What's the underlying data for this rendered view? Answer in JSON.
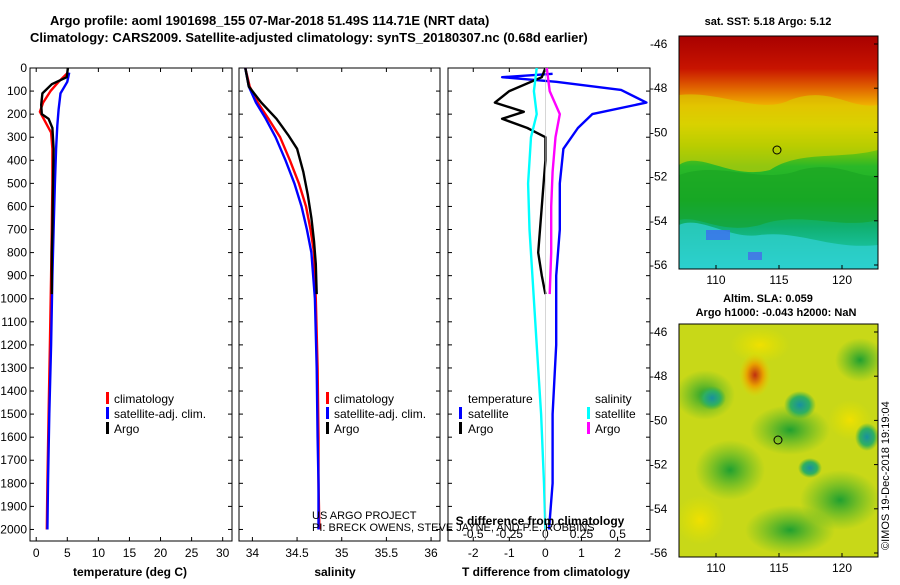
{
  "title_line1": "Argo profile: aoml 1901698_155 07-Mar-2018 51.49S 114.71E (NRT data)",
  "title_line2": "Climatology: CARS2009. Satellite-adjusted climatology: synTS_20180307.nc (0.68d earlier)",
  "colors": {
    "red": "#ff0000",
    "blue": "#0000ff",
    "black": "#000000",
    "cyan": "#00ffff",
    "magenta": "#ff00ff"
  },
  "depth_ticks": [
    "0",
    "100",
    "200",
    "300",
    "400",
    "500",
    "600",
    "700",
    "800",
    "900",
    "1000",
    "1100",
    "1200",
    "1300",
    "1400",
    "1500",
    "1600",
    "1700",
    "1800",
    "1900",
    "2000"
  ],
  "chart_data": [
    {
      "type": "line",
      "panel": "temperature",
      "xlabel": "temperature (deg C)",
      "ylabel": "depth",
      "xlim": [
        -1,
        31.5
      ],
      "ylim": [
        2050,
        0
      ],
      "xticks": [
        "0",
        "5",
        "10",
        "15",
        "20",
        "25",
        "30"
      ],
      "legend": [
        "climatology",
        "satellite-adj. clim.",
        "Argo"
      ],
      "series": [
        {
          "name": "climatology",
          "color": "red",
          "points": [
            [
              5.1,
              20
            ],
            [
              3.6,
              60
            ],
            [
              2.3,
              100
            ],
            [
              1.1,
              150
            ],
            [
              0.6,
              190
            ],
            [
              1.4,
              230
            ],
            [
              2.4,
              280
            ],
            [
              2.6,
              350
            ],
            [
              2.6,
              500
            ],
            [
              2.5,
              700
            ],
            [
              2.4,
              900
            ],
            [
              2.2,
              1200
            ],
            [
              2.0,
              1500
            ],
            [
              1.8,
              1800
            ],
            [
              1.7,
              2000
            ]
          ]
        },
        {
          "name": "satellite-adj. clim.",
          "color": "blue",
          "points": [
            [
              5.3,
              20
            ],
            [
              5.0,
              60
            ],
            [
              3.9,
              110
            ],
            [
              3.6,
              180
            ],
            [
              3.4,
              250
            ],
            [
              3.2,
              350
            ],
            [
              3.0,
              500
            ],
            [
              2.8,
              700
            ],
            [
              2.6,
              900
            ],
            [
              2.4,
              1200
            ],
            [
              2.1,
              1500
            ],
            [
              1.9,
              1800
            ],
            [
              1.8,
              2000
            ]
          ]
        },
        {
          "name": "Argo",
          "color": "black",
          "points": [
            [
              5.1,
              0
            ],
            [
              4.9,
              40
            ],
            [
              2.5,
              70
            ],
            [
              1.0,
              110
            ],
            [
              0.8,
              160
            ],
            [
              0.9,
              200
            ],
            [
              2.0,
              220
            ],
            [
              2.6,
              260
            ],
            [
              2.8,
              350
            ],
            [
              2.7,
              500
            ],
            [
              2.6,
              700
            ],
            [
              2.5,
              800
            ],
            [
              2.5,
              980
            ]
          ]
        }
      ]
    },
    {
      "type": "line",
      "panel": "salinity",
      "xlabel": "salinity",
      "ylabel": "depth",
      "xlim": [
        33.85,
        36.1
      ],
      "ylim": [
        2050,
        0
      ],
      "xticks": [
        "34",
        "34.5",
        "35",
        "35.5",
        "36"
      ],
      "legend": [
        "climatology",
        "satellite-adj. clim.",
        "Argo"
      ],
      "series": [
        {
          "name": "climatology",
          "color": "red",
          "points": [
            [
              33.92,
              0
            ],
            [
              33.97,
              80
            ],
            [
              34.06,
              150
            ],
            [
              34.18,
              220
            ],
            [
              34.31,
              300
            ],
            [
              34.42,
              400
            ],
            [
              34.52,
              500
            ],
            [
              34.6,
              600
            ],
            [
              34.65,
              700
            ],
            [
              34.69,
              800
            ],
            [
              34.71,
              1000
            ],
            [
              34.73,
              1300
            ],
            [
              34.74,
              1600
            ],
            [
              34.74,
              1800
            ],
            [
              34.75,
              2000
            ]
          ]
        },
        {
          "name": "satellite-adj. clim.",
          "color": "blue",
          "points": [
            [
              33.92,
              0
            ],
            [
              33.96,
              80
            ],
            [
              34.04,
              150
            ],
            [
              34.15,
              220
            ],
            [
              34.26,
              300
            ],
            [
              34.37,
              400
            ],
            [
              34.47,
              500
            ],
            [
              34.55,
              600
            ],
            [
              34.61,
              700
            ],
            [
              34.66,
              800
            ],
            [
              34.7,
              1000
            ],
            [
              34.72,
              1300
            ],
            [
              34.73,
              1600
            ],
            [
              34.74,
              1800
            ],
            [
              34.74,
              2000
            ]
          ]
        },
        {
          "name": "Argo",
          "color": "black",
          "points": [
            [
              33.92,
              0
            ],
            [
              33.96,
              80
            ],
            [
              34.1,
              150
            ],
            [
              34.27,
              220
            ],
            [
              34.4,
              290
            ],
            [
              34.5,
              350
            ],
            [
              34.57,
              450
            ],
            [
              34.62,
              550
            ],
            [
              34.66,
              650
            ],
            [
              34.69,
              750
            ],
            [
              34.71,
              850
            ],
            [
              34.72,
              980
            ]
          ]
        }
      ]
    },
    {
      "type": "line",
      "panel": "difference",
      "xlabel": "T difference from climatology",
      "top_label": "S difference from climatology",
      "xlim": [
        -2.7,
        2.9
      ],
      "ylim": [
        2050,
        0
      ],
      "xticks": [
        "-2",
        "-1",
        "0",
        "1",
        "2"
      ],
      "top_xticks": [
        "-0.5",
        "-0.25",
        "0",
        "0.25",
        "0.5"
      ],
      "legend_temperature": [
        "temperature",
        "satellite",
        "Argo"
      ],
      "legend_salinity": [
        "salinity",
        "satellite",
        "Argo"
      ],
      "series": [
        {
          "name": "temperature satellite",
          "color": "blue",
          "points": [
            [
              0.2,
              25
            ],
            [
              -1.2,
              40
            ],
            [
              0.3,
              60
            ],
            [
              2.1,
              95
            ],
            [
              2.8,
              150
            ],
            [
              1.3,
              200
            ],
            [
              0.9,
              260
            ],
            [
              0.5,
              350
            ],
            [
              0.4,
              500
            ],
            [
              0.4,
              700
            ],
            [
              0.3,
              900
            ],
            [
              0.3,
              1200
            ],
            [
              0.2,
              1500
            ],
            [
              0.2,
              1800
            ],
            [
              0.1,
              2000
            ]
          ]
        },
        {
          "name": "temperature Argo",
          "color": "black",
          "points": [
            [
              0,
              0
            ],
            [
              -0.1,
              40
            ],
            [
              -1.0,
              100
            ],
            [
              -1.4,
              150
            ],
            [
              -0.6,
              190
            ],
            [
              -1.2,
              220
            ],
            [
              -0.5,
              260
            ],
            [
              0.0,
              300
            ],
            [
              0.0,
              400
            ],
            [
              -0.1,
              600
            ],
            [
              -0.2,
              800
            ],
            [
              -0.1,
              900
            ],
            [
              0.0,
              980
            ]
          ]
        },
        {
          "name": "salinity satellite",
          "color": "cyan",
          "points": [
            [
              -0.06,
              0
            ],
            [
              -0.08,
              100
            ],
            [
              -0.06,
              200
            ],
            [
              -0.1,
              300
            ],
            [
              -0.12,
              500
            ],
            [
              -0.11,
              700
            ],
            [
              -0.09,
              900
            ],
            [
              -0.06,
              1200
            ],
            [
              -0.03,
              1500
            ],
            [
              -0.01,
              1800
            ],
            [
              0.0,
              2000
            ]
          ]
        },
        {
          "name": "salinity Argo",
          "color": "magenta",
          "points": [
            [
              0.01,
              0
            ],
            [
              0.03,
              100
            ],
            [
              0.1,
              200
            ],
            [
              0.07,
              300
            ],
            [
              0.05,
              450
            ],
            [
              0.04,
              600
            ],
            [
              0.04,
              800
            ],
            [
              0.03,
              980
            ]
          ]
        }
      ]
    }
  ],
  "credits": {
    "line1": "US ARGO PROJECT",
    "line2": "PI: BRECK OWENS, STEVE JAYNE, AND P.E. ROBBINS"
  },
  "sst_map": {
    "title": "sat. SST: 5.18 Argo: 5.12",
    "lat_ticks": [
      "-46",
      "-48",
      "-50",
      "-52",
      "-54",
      "-56"
    ],
    "lon_ticks": [
      "110",
      "115",
      "120"
    ]
  },
  "sla_map": {
    "title1": "Altim. SLA: 0.059",
    "title2": "Argo h1000: -0.043 h2000: NaN",
    "lat_ticks": [
      "-46",
      "-48",
      "-50",
      "-52",
      "-54",
      "-56"
    ],
    "lon_ticks": [
      "110",
      "115",
      "120"
    ]
  },
  "watermark": "©IMOS 19-Dec-2018 19:19:04"
}
